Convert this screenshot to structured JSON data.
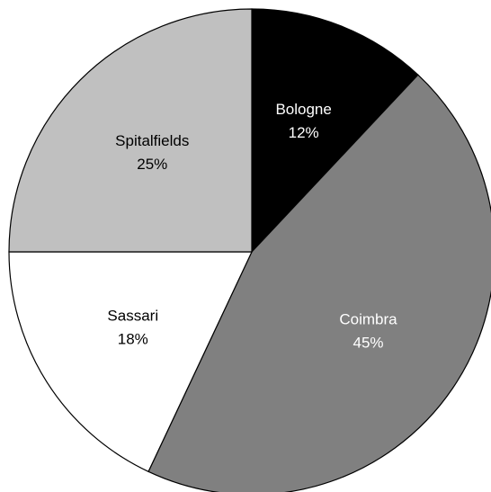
{
  "chart_data": {
    "type": "pie",
    "categories": [
      "Bologne",
      "Coimbra",
      "Sassari",
      "Spitalfields"
    ],
    "values": [
      12,
      45,
      18,
      25
    ],
    "value_labels": [
      "12%",
      "45%",
      "18%",
      "25%"
    ],
    "colors": [
      "#000000",
      "#808080",
      "#ffffff",
      "#c0c0c0"
    ],
    "label_colors": [
      "#ffffff",
      "#ffffff",
      "#000000",
      "#000000"
    ]
  }
}
